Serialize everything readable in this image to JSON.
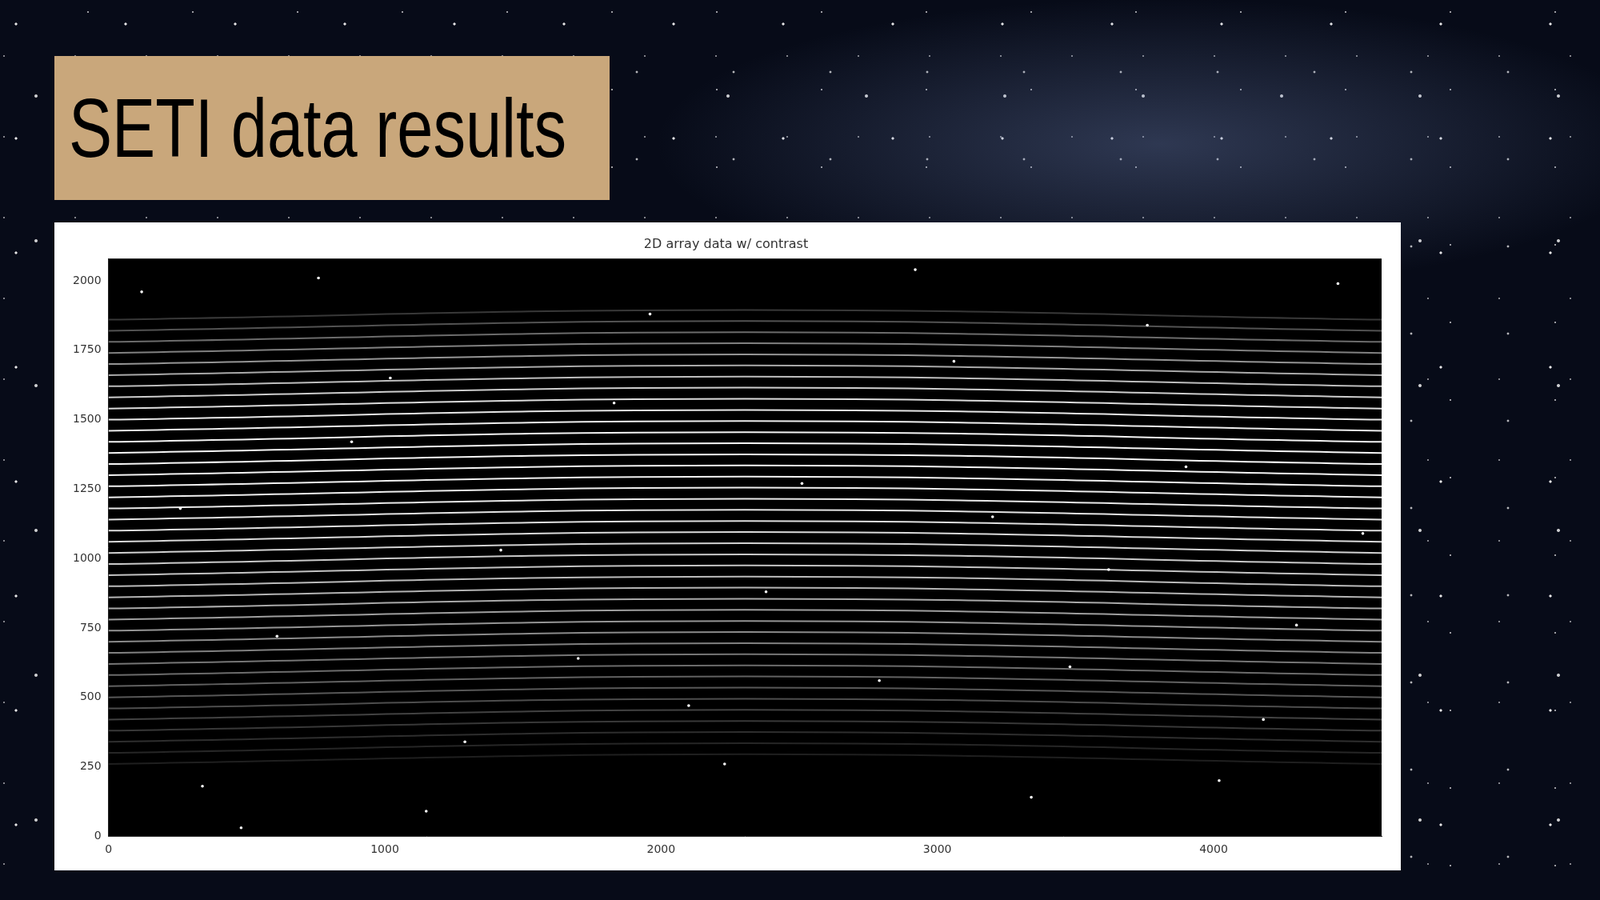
{
  "slide": {
    "title": "SETI data results"
  },
  "chart_data": {
    "type": "image",
    "title": "2D array data w/ contrast",
    "xlim": [
      0,
      4608
    ],
    "ylim": [
      0,
      2080
    ],
    "xticks": [
      0,
      1000,
      2000,
      3000,
      4000
    ],
    "yticks": [
      0,
      250,
      500,
      750,
      1000,
      1250,
      1500,
      1750,
      2000
    ],
    "grid": false,
    "order_x": [
      0,
      2304,
      4608
    ],
    "orders": [
      {
        "y": [
          260,
          295,
          260
        ],
        "intensity": 0.12
      },
      {
        "y": [
          300,
          335,
          300
        ],
        "intensity": 0.15
      },
      {
        "y": [
          340,
          375,
          340
        ],
        "intensity": 0.18
      },
      {
        "y": [
          380,
          415,
          380
        ],
        "intensity": 0.22
      },
      {
        "y": [
          420,
          455,
          420
        ],
        "intensity": 0.26
      },
      {
        "y": [
          460,
          495,
          460
        ],
        "intensity": 0.3
      },
      {
        "y": [
          500,
          535,
          500
        ],
        "intensity": 0.34
      },
      {
        "y": [
          540,
          575,
          540
        ],
        "intensity": 0.38
      },
      {
        "y": [
          580,
          615,
          580
        ],
        "intensity": 0.42
      },
      {
        "y": [
          620,
          655,
          620
        ],
        "intensity": 0.46
      },
      {
        "y": [
          660,
          695,
          660
        ],
        "intensity": 0.5
      },
      {
        "y": [
          700,
          735,
          700
        ],
        "intensity": 0.54
      },
      {
        "y": [
          740,
          775,
          740
        ],
        "intensity": 0.58
      },
      {
        "y": [
          780,
          815,
          780
        ],
        "intensity": 0.62
      },
      {
        "y": [
          820,
          855,
          820
        ],
        "intensity": 0.66
      },
      {
        "y": [
          860,
          895,
          860
        ],
        "intensity": 0.7
      },
      {
        "y": [
          900,
          935,
          900
        ],
        "intensity": 0.73
      },
      {
        "y": [
          940,
          975,
          940
        ],
        "intensity": 0.76
      },
      {
        "y": [
          980,
          1015,
          980
        ],
        "intensity": 0.79
      },
      {
        "y": [
          1020,
          1055,
          1020
        ],
        "intensity": 0.82
      },
      {
        "y": [
          1060,
          1095,
          1060
        ],
        "intensity": 0.85
      },
      {
        "y": [
          1100,
          1135,
          1100
        ],
        "intensity": 0.87
      },
      {
        "y": [
          1140,
          1175,
          1140
        ],
        "intensity": 0.89
      },
      {
        "y": [
          1180,
          1215,
          1180
        ],
        "intensity": 0.91
      },
      {
        "y": [
          1220,
          1255,
          1220
        ],
        "intensity": 0.93
      },
      {
        "y": [
          1260,
          1295,
          1260
        ],
        "intensity": 0.94
      },
      {
        "y": [
          1300,
          1335,
          1300
        ],
        "intensity": 0.95
      },
      {
        "y": [
          1340,
          1375,
          1340
        ],
        "intensity": 0.96
      },
      {
        "y": [
          1380,
          1415,
          1380
        ],
        "intensity": 0.96
      },
      {
        "y": [
          1420,
          1455,
          1420
        ],
        "intensity": 0.95
      },
      {
        "y": [
          1460,
          1495,
          1460
        ],
        "intensity": 0.93
      },
      {
        "y": [
          1500,
          1535,
          1500
        ],
        "intensity": 0.9
      },
      {
        "y": [
          1540,
          1575,
          1540
        ],
        "intensity": 0.86
      },
      {
        "y": [
          1580,
          1615,
          1580
        ],
        "intensity": 0.8
      },
      {
        "y": [
          1620,
          1655,
          1620
        ],
        "intensity": 0.74
      },
      {
        "y": [
          1660,
          1695,
          1660
        ],
        "intensity": 0.66
      },
      {
        "y": [
          1700,
          1735,
          1700
        ],
        "intensity": 0.58
      },
      {
        "y": [
          1740,
          1775,
          1740
        ],
        "intensity": 0.5
      },
      {
        "y": [
          1780,
          1815,
          1780
        ],
        "intensity": 0.42
      },
      {
        "y": [
          1820,
          1855,
          1820
        ],
        "intensity": 0.32
      },
      {
        "y": [
          1860,
          1895,
          1860
        ],
        "intensity": 0.22
      }
    ],
    "hot_pixels": {
      "x": [
        120,
        340,
        610,
        880,
        1150,
        1420,
        1700,
        1960,
        2230,
        2510,
        2790,
        3060,
        3340,
        3620,
        3900,
        4180,
        4450,
        260,
        760,
        1290,
        1830,
        2380,
        2920,
        3480,
        4020,
        4540,
        480,
        1020,
        2100,
        3200,
        3760,
        4300
      ],
      "y": [
        1960,
        180,
        720,
        1420,
        90,
        1030,
        640,
        1880,
        260,
        1270,
        560,
        1710,
        140,
        960,
        1330,
        420,
        1990,
        1180,
        2010,
        340,
        1560,
        880,
        2040,
        610,
        200,
        1090,
        30,
        1650,
        470,
        1150,
        1840,
        760
      ]
    }
  }
}
